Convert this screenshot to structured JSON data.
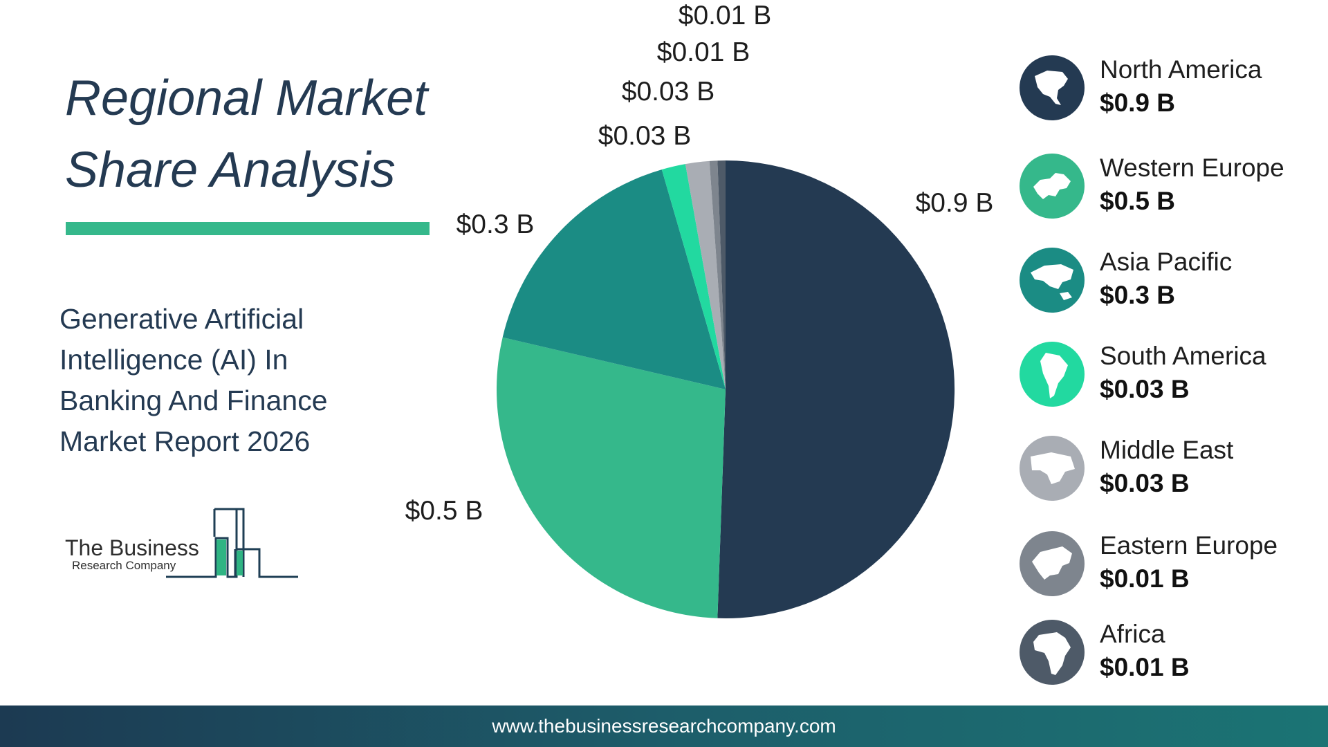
{
  "header": {
    "title_line1": "Regional Market",
    "title_line2": "Share Analysis",
    "subtitle": "Generative Artificial Intelligence (AI) In Banking And Finance Market Report 2026"
  },
  "logo": {
    "name": "The Business",
    "tagline": "Research Company"
  },
  "colors": {
    "navy": "#243a52",
    "green": "#35b88b",
    "teal": "#1b8c84",
    "mint": "#22d9a0",
    "light_gray": "#a9adb4",
    "gray": "#7e858e",
    "slate": "#4e5a68"
  },
  "chart_data": {
    "type": "pie",
    "categories": [
      "North America",
      "Western Europe",
      "Asia Pacific",
      "South America",
      "Middle East",
      "Eastern Europe",
      "Africa"
    ],
    "values": [
      0.9,
      0.5,
      0.3,
      0.03,
      0.03,
      0.01,
      0.01
    ],
    "labels": [
      "$0.9 B",
      "$0.5 B",
      "$0.3 B",
      "$0.03 B",
      "$0.03 B",
      "$0.01 B",
      "$0.01 B"
    ],
    "colors": [
      "#243a52",
      "#35b88b",
      "#1b8c84",
      "#22d9a0",
      "#a9adb4",
      "#7e858e",
      "#4e5a68"
    ],
    "start": "12 o'clock",
    "direction": "clockwise"
  },
  "legend": {
    "items": [
      {
        "name": "North America",
        "value": "$0.9 B",
        "color": "#243a52",
        "icon": "north-america-map-icon"
      },
      {
        "name": "Western Europe",
        "value": "$0.5 B",
        "color": "#35b88b",
        "icon": "western-europe-map-icon"
      },
      {
        "name": "Asia Pacific",
        "value": "$0.3 B",
        "color": "#1b8c84",
        "icon": "asia-pacific-map-icon"
      },
      {
        "name": "South America",
        "value": "$0.03 B",
        "color": "#22d9a0",
        "icon": "south-america-map-icon"
      },
      {
        "name": "Middle East",
        "value": "$0.03 B",
        "color": "#a9adb4",
        "icon": "middle-east-map-icon"
      },
      {
        "name": "Eastern Europe",
        "value": "$0.01 B",
        "color": "#7e858e",
        "icon": "eastern-europe-map-icon"
      },
      {
        "name": "Africa",
        "value": "$0.01 B",
        "color": "#4e5a68",
        "icon": "africa-map-icon"
      }
    ]
  },
  "footer": {
    "url": "www.thebusinessresearchcompany.com"
  }
}
